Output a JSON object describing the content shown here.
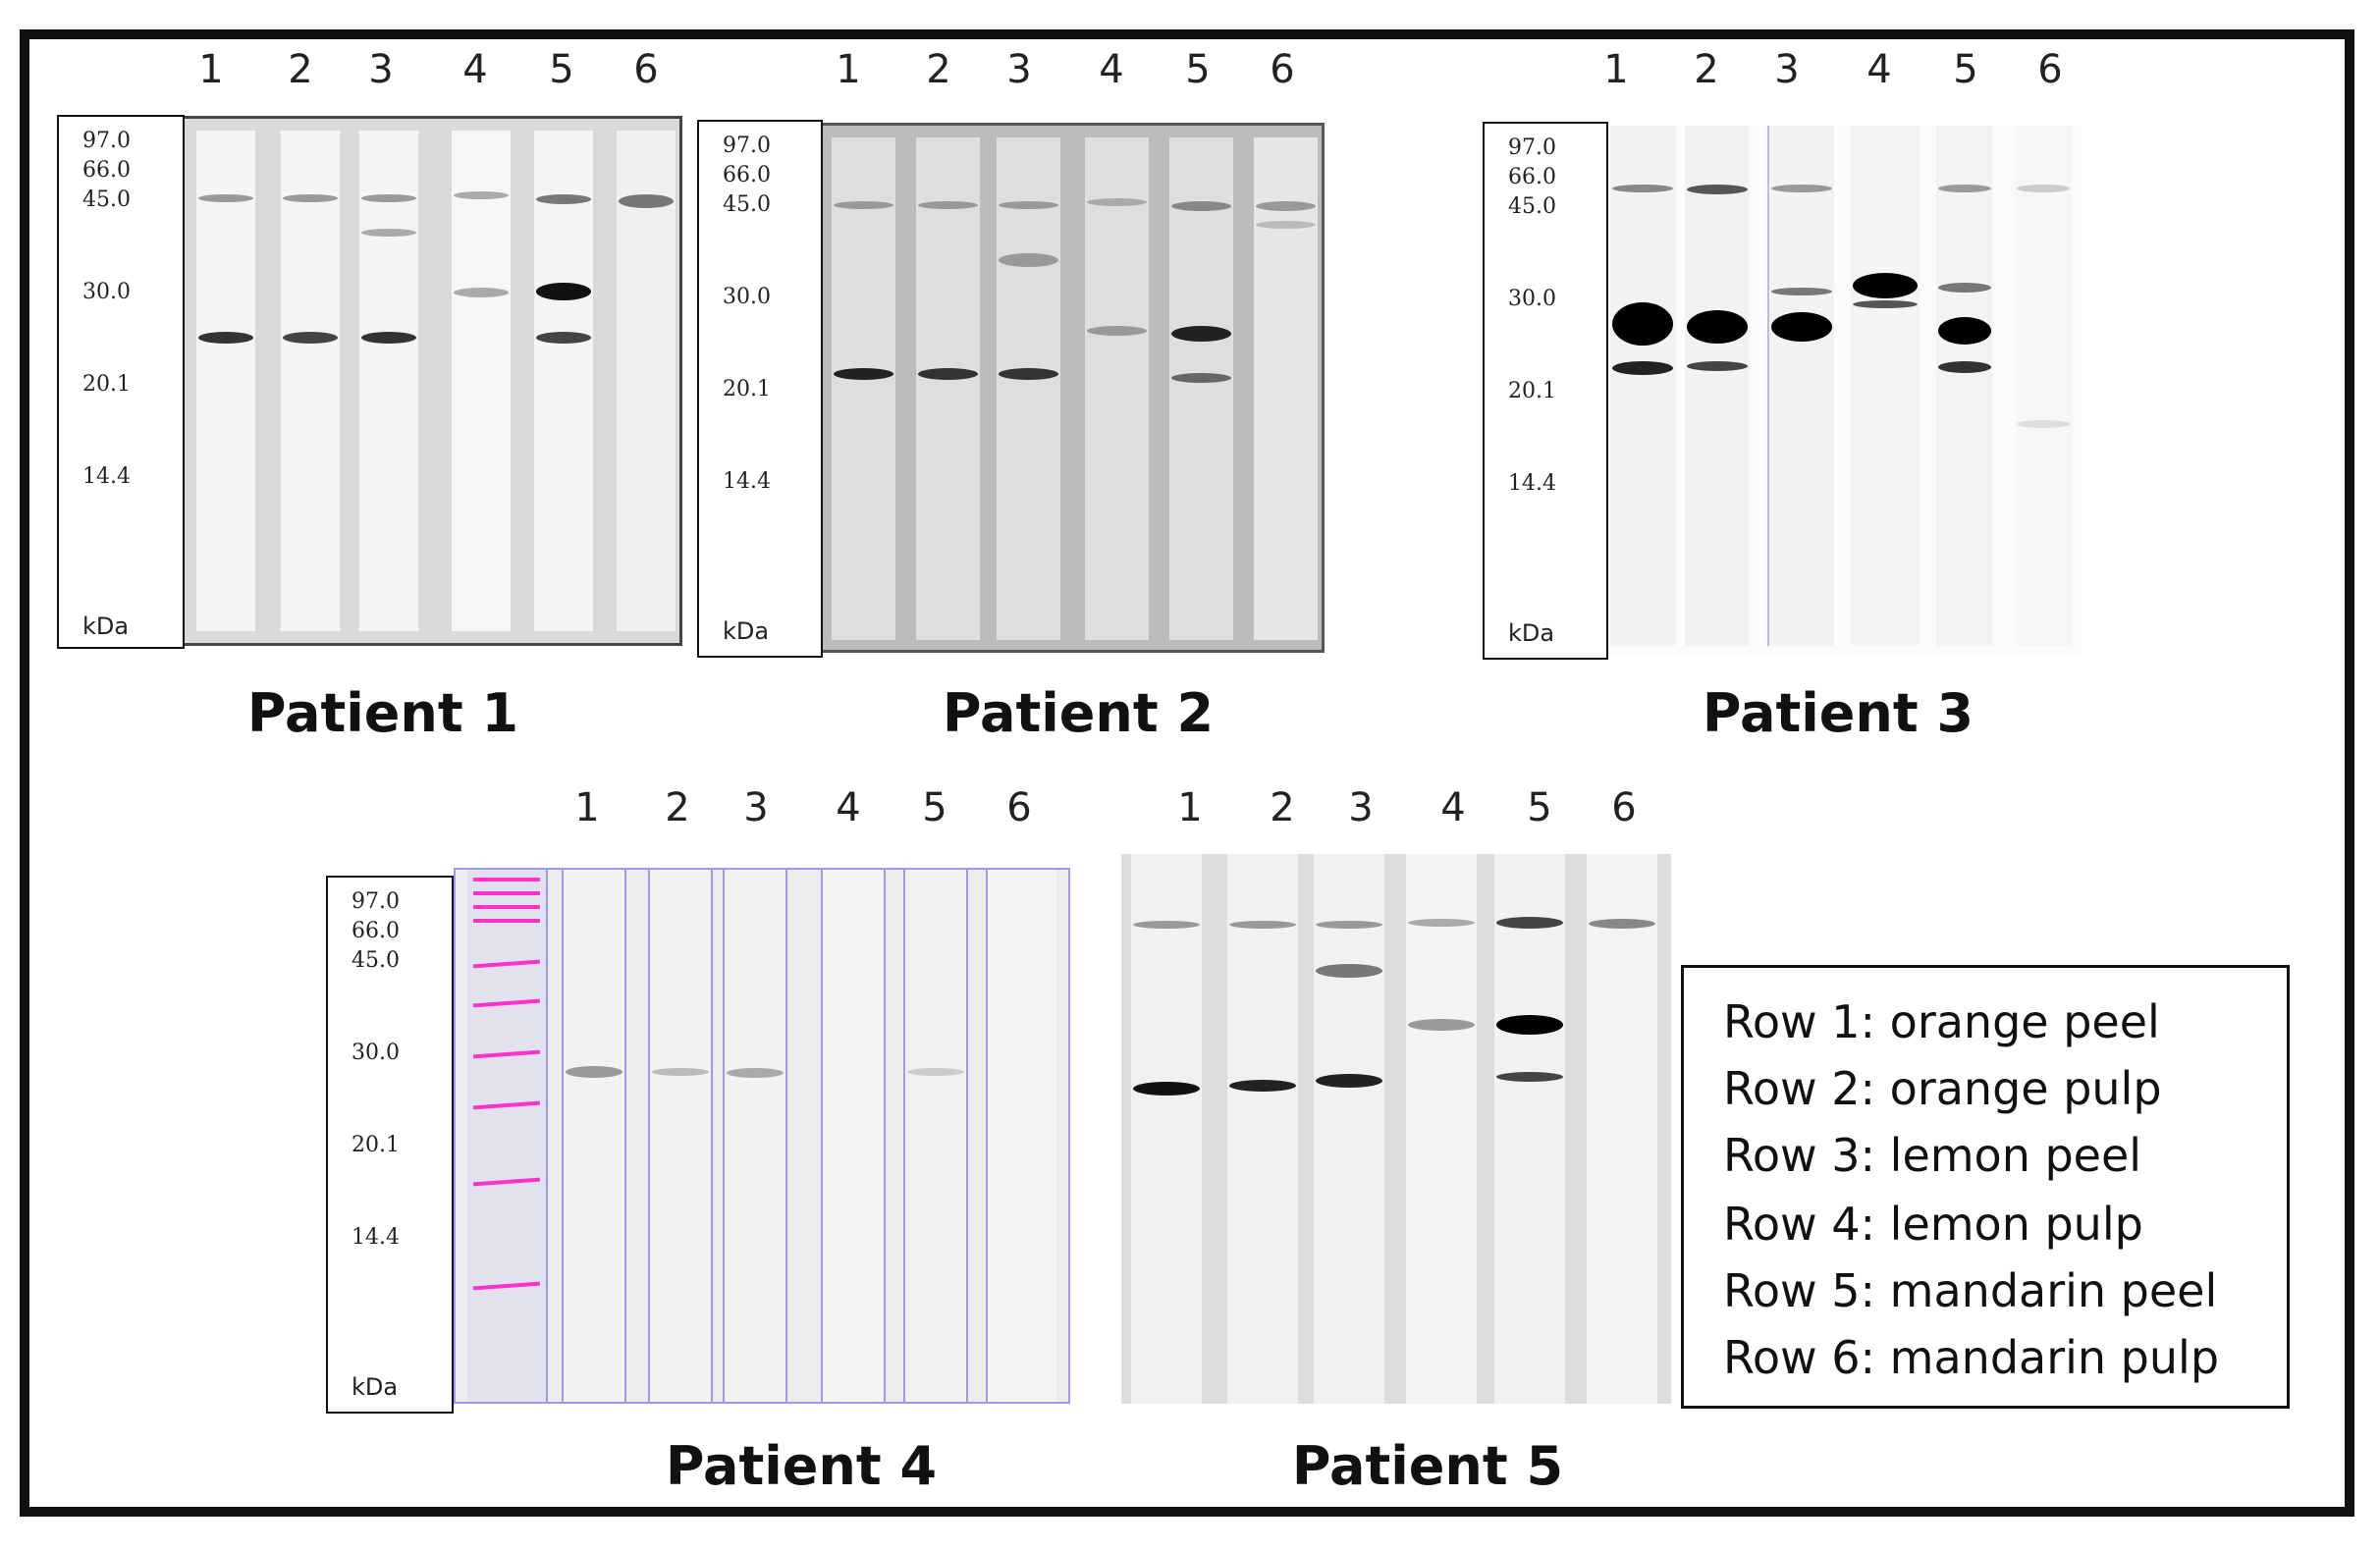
{
  "lane_labels": [
    "1",
    "2",
    "3",
    "4",
    "5",
    "6"
  ],
  "mw_markers": [
    "97.0",
    "66.0",
    "45.0",
    "30.0",
    "20.1",
    "14.4"
  ],
  "mw_unit": "kDa",
  "panels": [
    {
      "title": "Patient 1"
    },
    {
      "title": "Patient 2"
    },
    {
      "title": "Patient 3"
    },
    {
      "title": "Patient 4"
    },
    {
      "title": "Patient 5"
    }
  ],
  "legend": [
    "Row 1: orange peel",
    "Row 2: orange pulp",
    "Row 3: lemon peel",
    "Row 4: lemon pulp",
    "Row 5: mandarin peel",
    "Row 6: mandarin pulp"
  ],
  "colors": {
    "band": "#111111",
    "marker_ladder": "#ff33cc",
    "lane_guides": "#9a9aee"
  }
}
